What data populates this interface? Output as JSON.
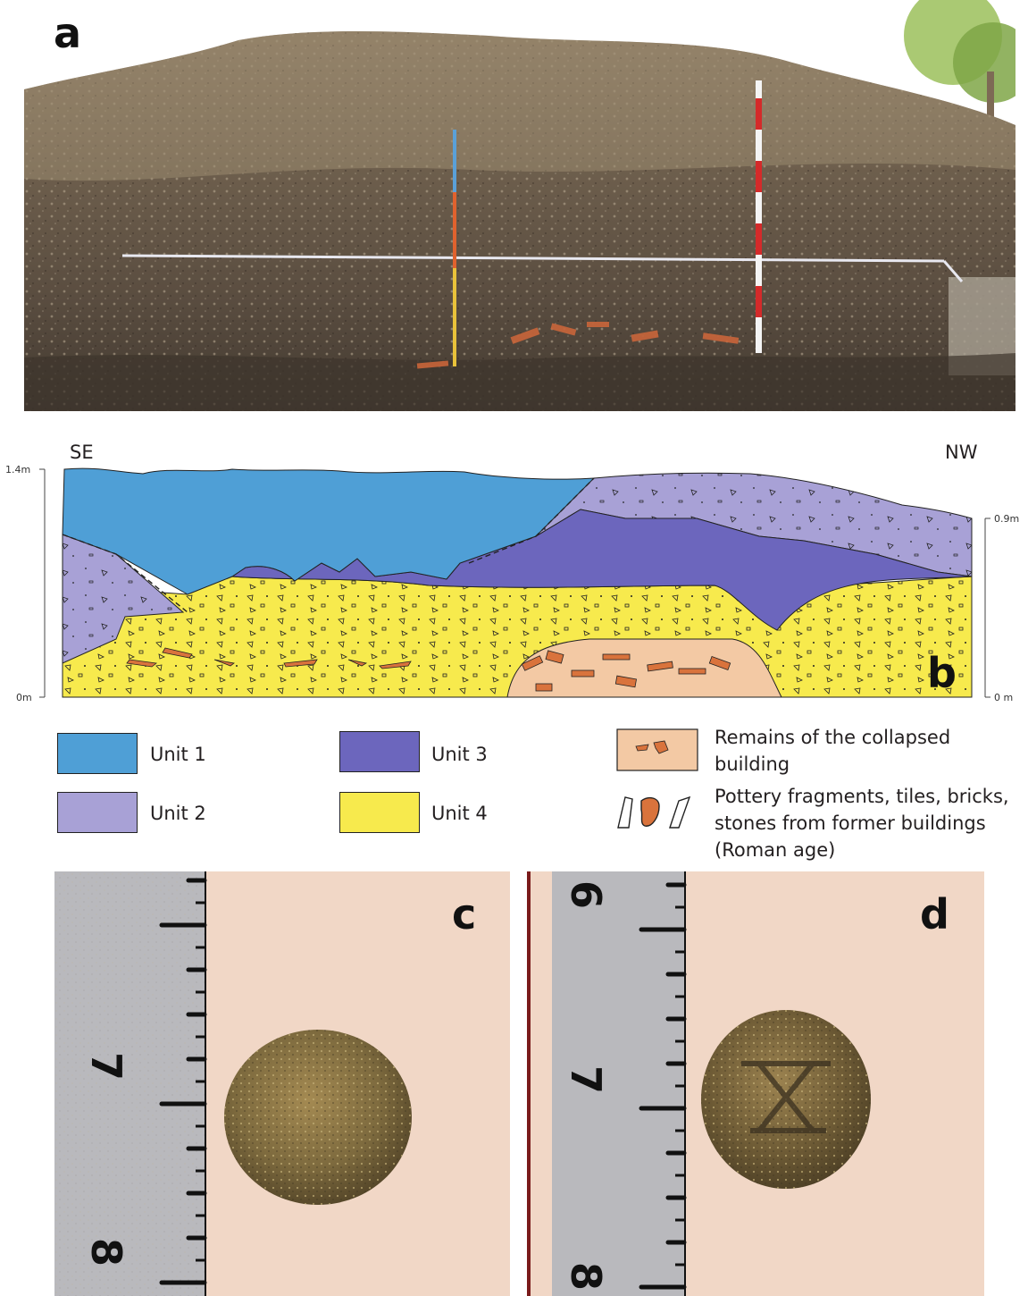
{
  "panel_a": {
    "letter": "a"
  },
  "panel_b": {
    "letter": "b",
    "direction_left": "SE",
    "direction_right": "NW",
    "left_axis_top": "1.4m",
    "left_axis_bottom": "0m",
    "right_axis_top": "0.9m",
    "right_axis_bottom": "0 m"
  },
  "legend": {
    "unit1": "Unit 1",
    "unit2": "Unit 2",
    "unit3": "Unit 3",
    "unit4": "Unit 4",
    "collapsed_line1": "Remains of the collapsed",
    "collapsed_line2": "building",
    "pottery_line1": "Pottery fragments, tiles, bricks,",
    "pottery_line2": "stones from former buildings",
    "pottery_line3": "(Roman age)"
  },
  "colors": {
    "unit1": "#4f9fd6",
    "unit2": "#a8a1d6",
    "unit3": "#6c66bd",
    "unit4": "#f7ea4d",
    "collapsed": "#f3c9a4",
    "fragment": "#d9733c"
  },
  "panel_c": {
    "letter": "c",
    "ruler_top": "7",
    "ruler_bottom": "8"
  },
  "panel_d": {
    "letter": "d",
    "ruler_top": "6",
    "ruler_mid": "7",
    "ruler_bottom": "8"
  }
}
